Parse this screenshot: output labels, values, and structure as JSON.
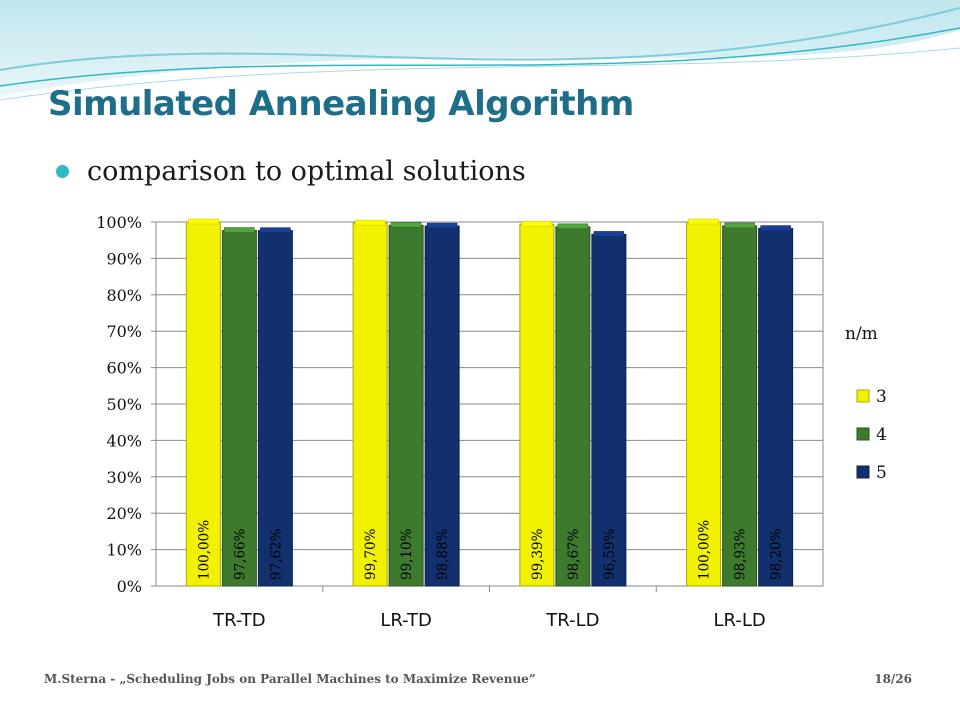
{
  "slide": {
    "title": "Simulated Annealing Algorithm",
    "bullet": "comparison to optimal solutions",
    "footer_left": "M.Sterna - „Scheduling Jobs on Parallel Machines to Maximize Revenue”",
    "footer_right": "18/26"
  },
  "colors": {
    "title": "#1e6e8a",
    "bullet": "#2fb8c9",
    "series": [
      "#f2f200",
      "#3d7a2e",
      "#12306e"
    ]
  },
  "chart_data": {
    "type": "bar",
    "categories": [
      "TR-TD",
      "LR-TD",
      "TR-LD",
      "LR-LD"
    ],
    "series": [
      {
        "name": "3",
        "values": [
          100.0,
          99.7,
          99.39,
          100.0
        ],
        "labels": [
          "100,00%",
          "99,70%",
          "99,39%",
          "100,00%"
        ]
      },
      {
        "name": "4",
        "values": [
          97.66,
          99.1,
          98.67,
          98.93
        ],
        "labels": [
          "97,66%",
          "99,10%",
          "98,67%",
          "98,93%"
        ]
      },
      {
        "name": "5",
        "values": [
          97.62,
          98.88,
          96.59,
          98.2
        ],
        "labels": [
          "97,62%",
          "98,88%",
          "96,59%",
          "98,20%"
        ]
      }
    ],
    "yticks": [
      "0%",
      "10%",
      "20%",
      "30%",
      "40%",
      "50%",
      "60%",
      "70%",
      "80%",
      "90%",
      "100%"
    ],
    "ylim": [
      0,
      100
    ],
    "legend_title": "n/m",
    "legend_position": "right",
    "grid": true
  }
}
